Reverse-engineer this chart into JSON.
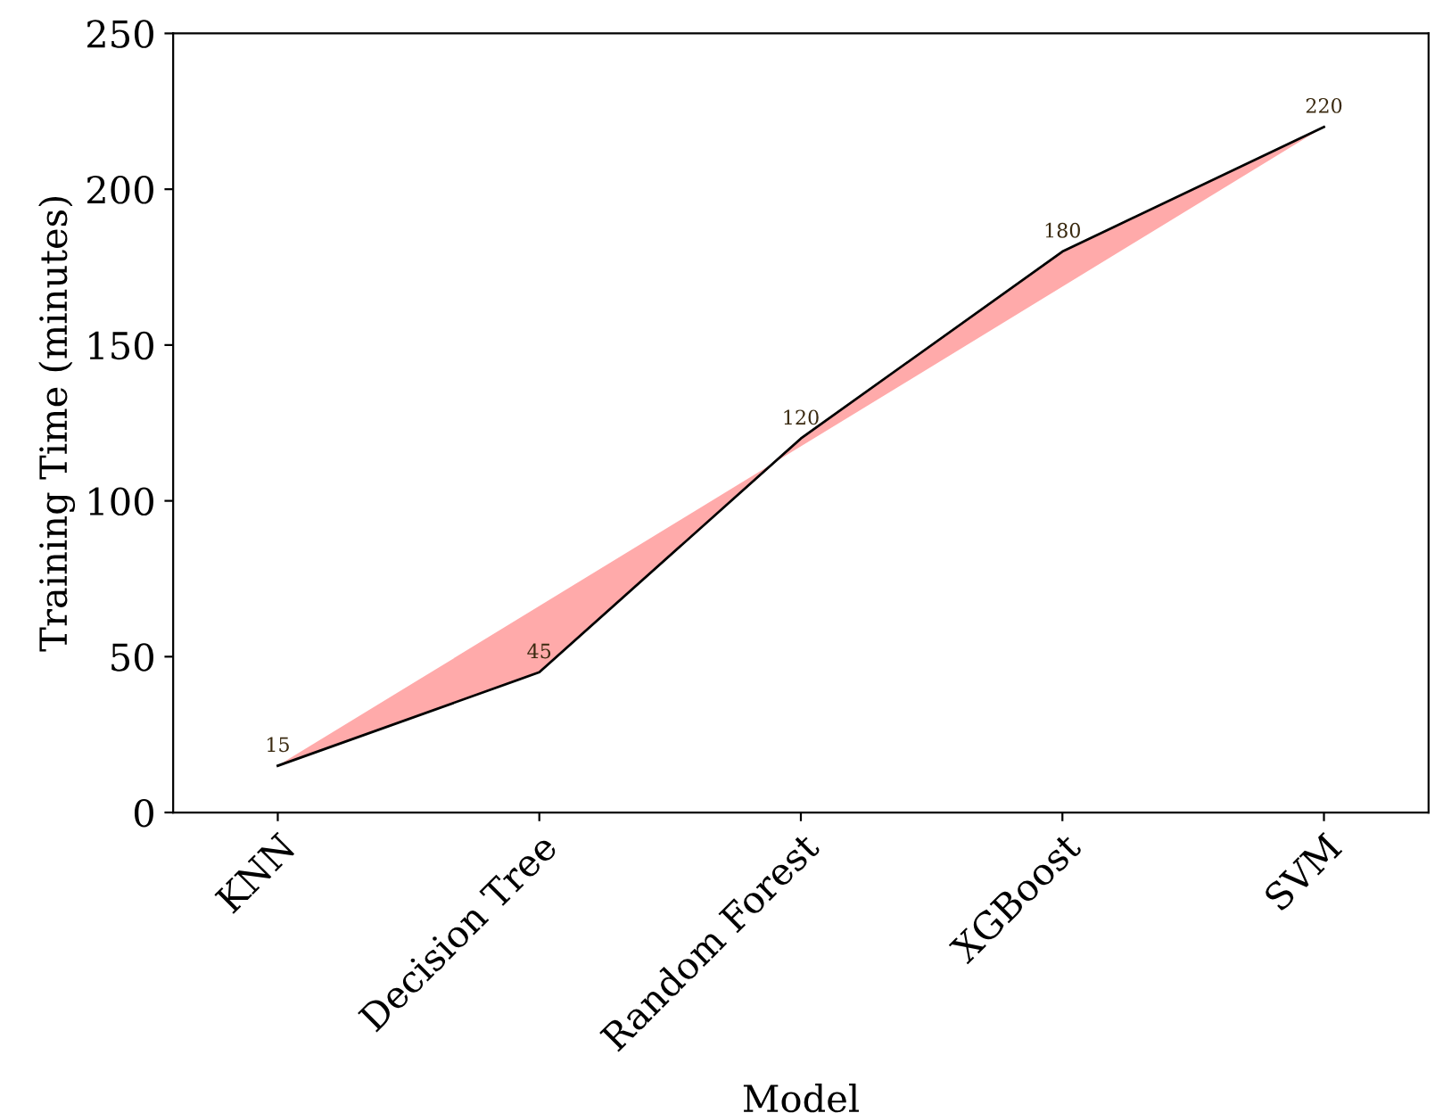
{
  "chart_data": {
    "type": "area",
    "xlabel": "Model",
    "ylabel": "Training Time (minutes)",
    "categories": [
      "KNN",
      "Decision Tree",
      "Random Forest",
      "XGBoost",
      "SVM"
    ],
    "series": [
      {
        "color": "#ffaaaa",
        "values": [
          15,
          45,
          120,
          180,
          220
        ]
      }
    ],
    "ylim": [
      0,
      250
    ],
    "yticks": [
      0,
      50,
      100,
      150,
      200,
      250
    ],
    "data_labels": true,
    "grid": false,
    "legend": false
  }
}
